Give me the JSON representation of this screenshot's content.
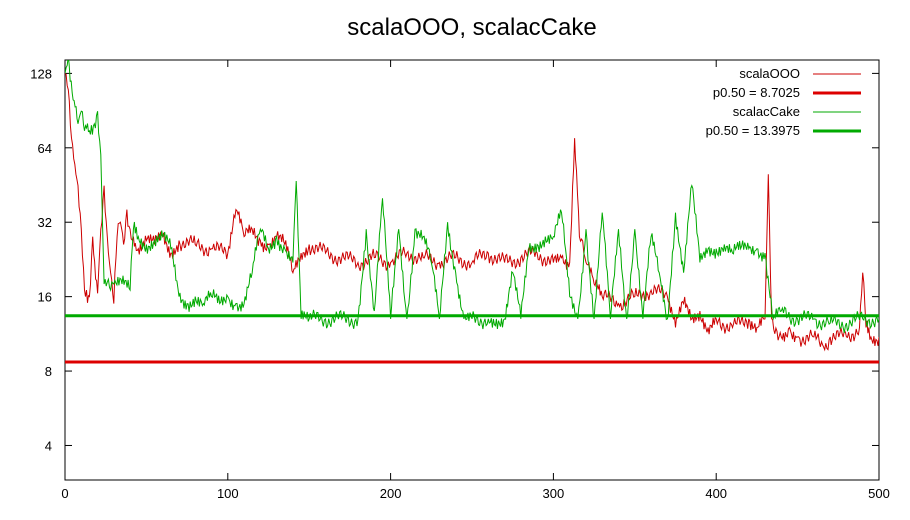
{
  "chart_data": {
    "type": "line",
    "title": "scalaOOO, scalacCake",
    "xlabel": "",
    "ylabel": "",
    "xlim": [
      0,
      500
    ],
    "ylim": [
      2.9,
      145
    ],
    "y_scale": "log2",
    "x_ticks": [
      0,
      100,
      200,
      300,
      400,
      500
    ],
    "y_ticks": [
      4,
      8,
      16,
      32,
      64,
      128
    ],
    "legend_position": "top-right",
    "colors": {
      "scalaOOO": "#cc0000",
      "scalacCake": "#00aa00"
    },
    "series": [
      {
        "name": "scalaOOO",
        "points": [
          [
            0,
            128
          ],
          [
            2,
            110
          ],
          [
            4,
            70
          ],
          [
            6,
            55
          ],
          [
            8,
            45
          ],
          [
            10,
            30
          ],
          [
            12,
            17
          ],
          [
            15,
            16
          ],
          [
            17,
            28
          ],
          [
            20,
            16.5
          ],
          [
            22,
            30
          ],
          [
            24,
            45
          ],
          [
            26,
            28
          ],
          [
            28,
            20
          ],
          [
            30,
            15
          ],
          [
            32,
            28
          ],
          [
            34,
            32
          ],
          [
            36,
            26
          ],
          [
            38,
            36
          ],
          [
            40,
            30
          ],
          [
            42,
            28
          ],
          [
            45,
            25
          ],
          [
            50,
            27
          ],
          [
            55,
            26
          ],
          [
            60,
            28
          ],
          [
            65,
            24
          ],
          [
            70,
            27
          ],
          [
            80,
            26
          ],
          [
            90,
            25
          ],
          [
            100,
            24
          ],
          [
            105,
            36
          ],
          [
            110,
            28
          ],
          [
            115,
            30
          ],
          [
            120,
            27
          ],
          [
            125,
            26
          ],
          [
            130,
            28
          ],
          [
            135,
            26
          ],
          [
            140,
            20
          ],
          [
            145,
            24
          ],
          [
            150,
            26
          ],
          [
            160,
            24
          ],
          [
            170,
            23
          ],
          [
            180,
            22
          ],
          [
            190,
            23
          ],
          [
            200,
            22
          ],
          [
            210,
            24
          ],
          [
            220,
            23
          ],
          [
            230,
            22
          ],
          [
            240,
            23
          ],
          [
            250,
            22
          ],
          [
            260,
            24
          ],
          [
            270,
            22
          ],
          [
            280,
            23
          ],
          [
            290,
            24
          ],
          [
            300,
            22
          ],
          [
            305,
            23
          ],
          [
            310,
            22
          ],
          [
            313,
            70
          ],
          [
            316,
            28
          ],
          [
            320,
            22
          ],
          [
            325,
            18
          ],
          [
            330,
            16
          ],
          [
            340,
            15
          ],
          [
            350,
            16
          ],
          [
            360,
            17
          ],
          [
            370,
            16
          ],
          [
            375,
            12
          ],
          [
            380,
            15
          ],
          [
            385,
            13
          ],
          [
            390,
            14
          ],
          [
            395,
            12
          ],
          [
            400,
            13
          ],
          [
            410,
            12
          ],
          [
            420,
            13
          ],
          [
            425,
            12
          ],
          [
            430,
            13
          ],
          [
            432,
            50
          ],
          [
            434,
            13
          ],
          [
            440,
            11
          ],
          [
            445,
            12
          ],
          [
            450,
            11
          ],
          [
            460,
            11
          ],
          [
            466,
            10
          ],
          [
            470,
            11
          ],
          [
            480,
            11
          ],
          [
            488,
            12
          ],
          [
            490,
            20
          ],
          [
            492,
            12
          ],
          [
            495,
            11
          ],
          [
            500,
            11
          ]
        ]
      },
      {
        "name": "scalacCake",
        "points": [
          [
            0,
            128
          ],
          [
            2,
            150
          ],
          [
            5,
            100
          ],
          [
            8,
            80
          ],
          [
            10,
            90
          ],
          [
            12,
            75
          ],
          [
            15,
            75
          ],
          [
            18,
            80
          ],
          [
            20,
            90
          ],
          [
            22,
            60
          ],
          [
            24,
            18
          ],
          [
            28,
            17
          ],
          [
            30,
            18
          ],
          [
            35,
            18
          ],
          [
            40,
            17
          ],
          [
            42,
            30
          ],
          [
            45,
            28
          ],
          [
            50,
            26
          ],
          [
            55,
            27
          ],
          [
            60,
            28
          ],
          [
            65,
            25
          ],
          [
            70,
            16
          ],
          [
            75,
            15
          ],
          [
            80,
            16
          ],
          [
            85,
            15
          ],
          [
            90,
            16
          ],
          [
            95,
            15
          ],
          [
            100,
            16
          ],
          [
            105,
            15
          ],
          [
            110,
            15
          ],
          [
            115,
            20
          ],
          [
            120,
            30
          ],
          [
            125,
            25
          ],
          [
            130,
            28
          ],
          [
            135,
            25
          ],
          [
            140,
            22
          ],
          [
            142,
            47
          ],
          [
            145,
            13
          ],
          [
            150,
            13
          ],
          [
            160,
            13
          ],
          [
            170,
            13
          ],
          [
            180,
            13
          ],
          [
            185,
            30
          ],
          [
            190,
            14
          ],
          [
            195,
            40
          ],
          [
            200,
            13
          ],
          [
            205,
            30
          ],
          [
            210,
            13
          ],
          [
            215,
            30
          ],
          [
            220,
            28
          ],
          [
            225,
            22
          ],
          [
            230,
            13
          ],
          [
            235,
            32
          ],
          [
            240,
            20
          ],
          [
            245,
            13
          ],
          [
            250,
            13
          ],
          [
            260,
            13
          ],
          [
            265,
            13
          ],
          [
            270,
            13
          ],
          [
            275,
            20
          ],
          [
            280,
            13
          ],
          [
            285,
            25
          ],
          [
            290,
            26
          ],
          [
            295,
            28
          ],
          [
            300,
            28
          ],
          [
            305,
            35
          ],
          [
            310,
            16
          ],
          [
            315,
            13
          ],
          [
            320,
            30
          ],
          [
            325,
            13
          ],
          [
            330,
            35
          ],
          [
            335,
            13
          ],
          [
            340,
            30
          ],
          [
            345,
            13
          ],
          [
            350,
            30
          ],
          [
            355,
            13
          ],
          [
            360,
            28
          ],
          [
            365,
            20
          ],
          [
            370,
            13
          ],
          [
            375,
            35
          ],
          [
            380,
            20
          ],
          [
            385,
            45
          ],
          [
            390,
            22
          ],
          [
            395,
            25
          ],
          [
            400,
            25
          ],
          [
            405,
            26
          ],
          [
            410,
            24
          ],
          [
            415,
            25
          ],
          [
            420,
            25
          ],
          [
            425,
            25
          ],
          [
            430,
            24
          ],
          [
            435,
            13
          ],
          [
            440,
            14
          ],
          [
            450,
            13
          ],
          [
            460,
            13
          ],
          [
            470,
            12.5
          ],
          [
            480,
            12.5
          ],
          [
            490,
            13
          ],
          [
            500,
            13
          ]
        ]
      },
      {
        "name": "p0.50 = 8.7025",
        "values": [
          8.7025
        ],
        "style": "horizontal-line",
        "color": "#dd0000"
      },
      {
        "name": "p0.50 = 13.3975",
        "values": [
          13.3975
        ],
        "style": "horizontal-line",
        "color": "#00aa00"
      }
    ]
  },
  "legend": {
    "entries": [
      {
        "label": "scalaOOO",
        "color": "#cc0000",
        "weight": "thin"
      },
      {
        "label": "p0.50 = 8.7025",
        "color": "#dd0000",
        "weight": "thick"
      },
      {
        "label": "scalacCake",
        "color": "#00aa00",
        "weight": "thin"
      },
      {
        "label": "p0.50 = 13.3975",
        "color": "#00aa00",
        "weight": "thick"
      }
    ]
  }
}
